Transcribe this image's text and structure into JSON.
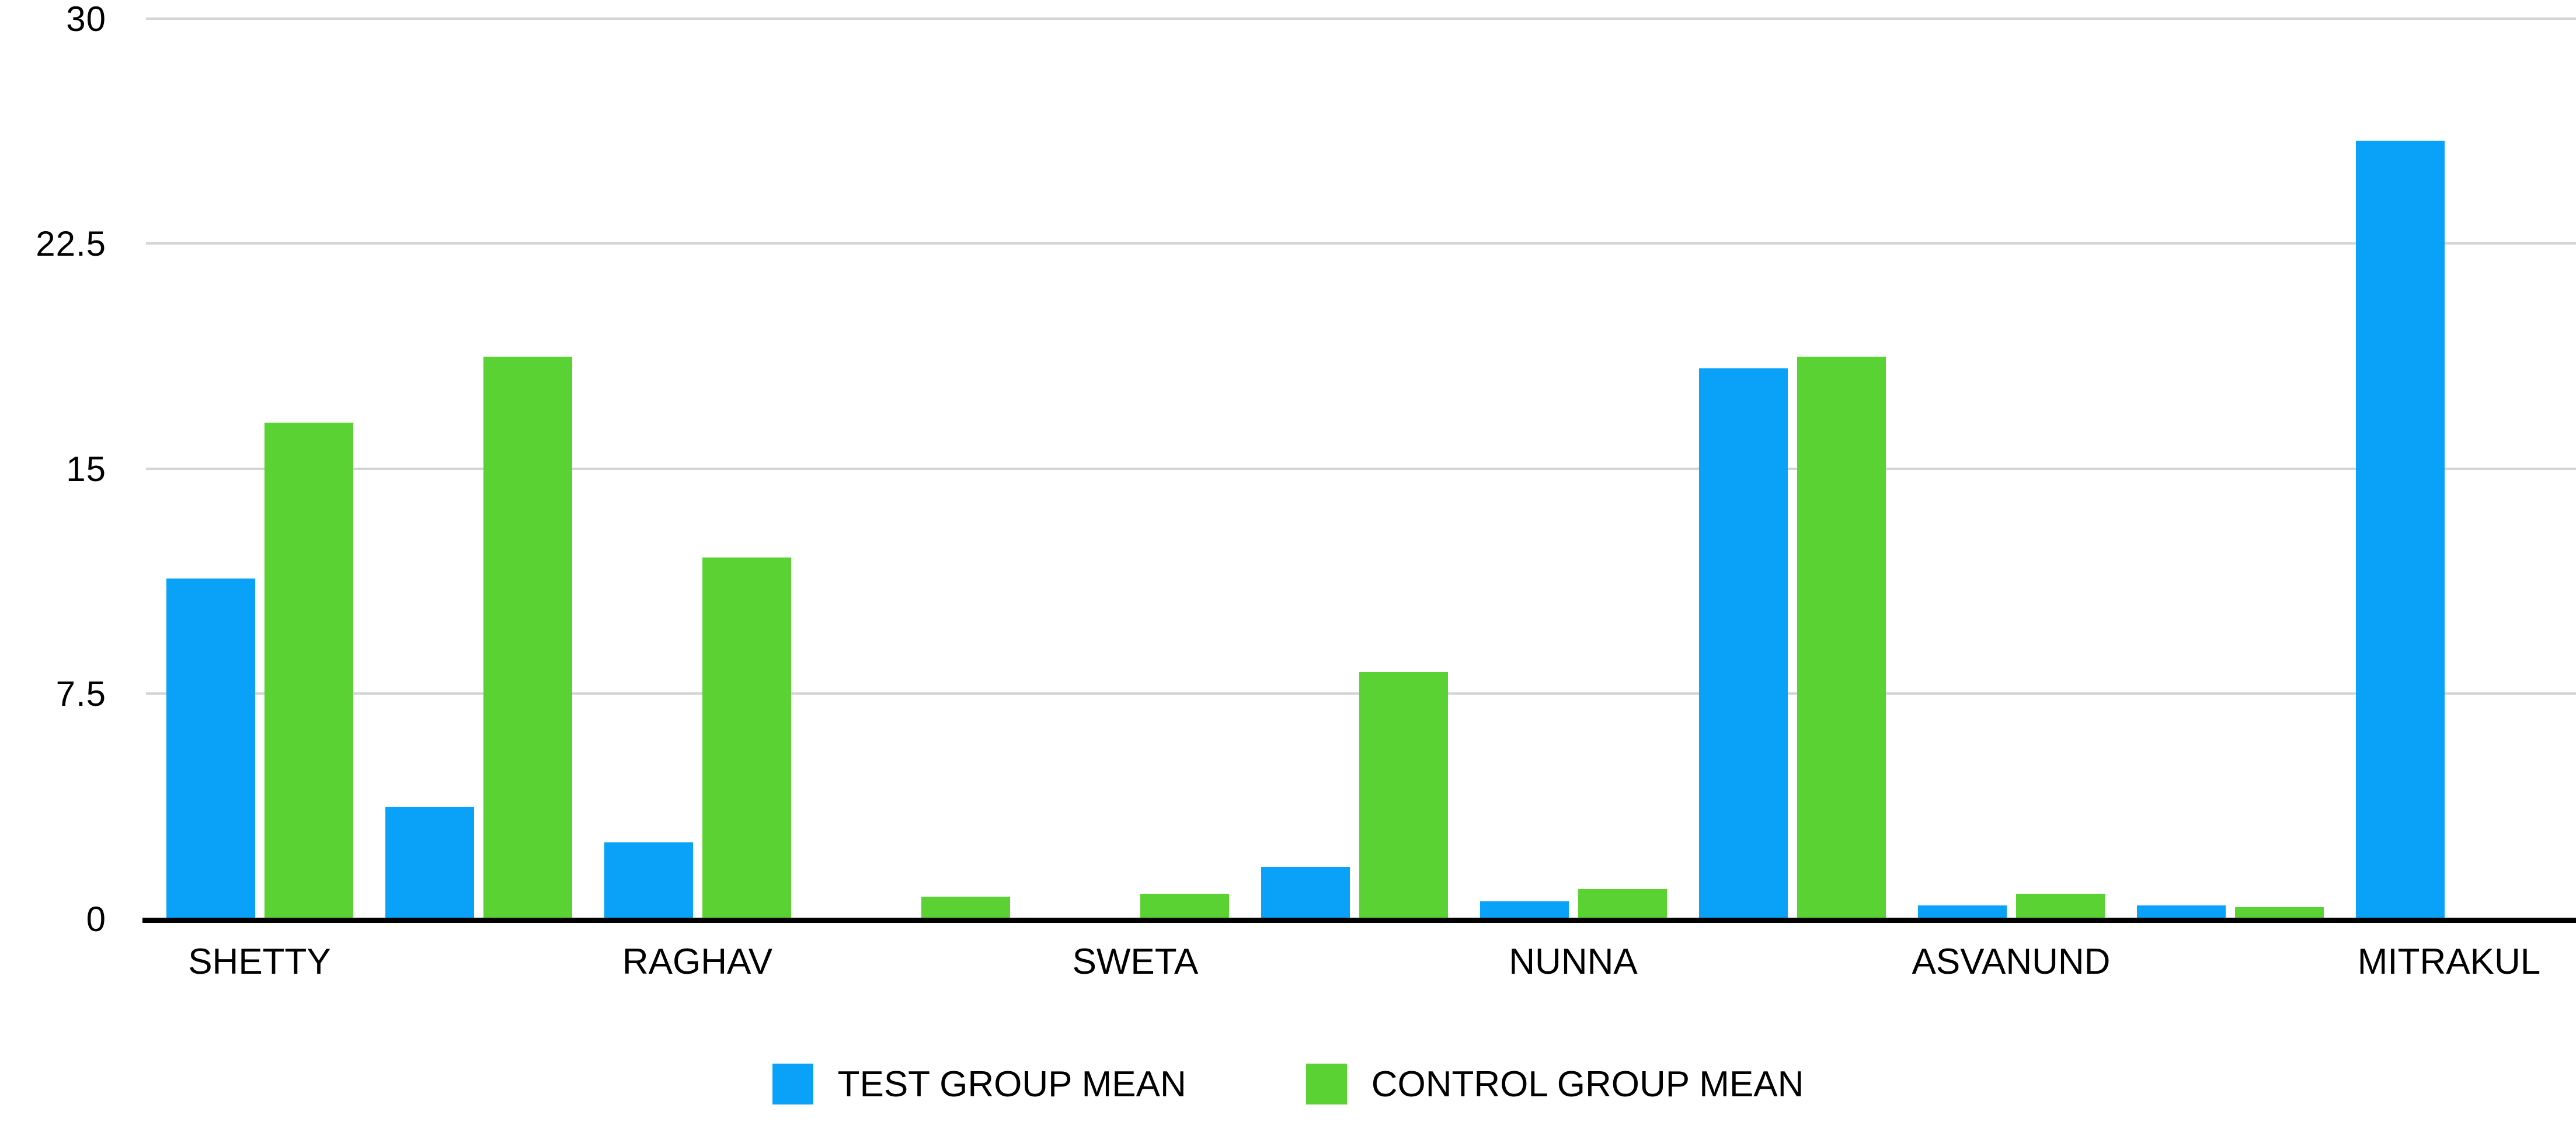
{
  "chart_data": {
    "type": "bar",
    "title": "",
    "categories": [
      "SHETTY",
      "",
      "RAGHAV",
      "",
      "SWETA",
      "",
      "NUNNA",
      "",
      "ASVANUND",
      "",
      "MITRAKUL"
    ],
    "series": [
      {
        "name": "TEST GROUP MEAN",
        "color": "#0aa2f8",
        "values": [
          11.3,
          3.7,
          2.5,
          0,
          0,
          1.7,
          0.55,
          18.3,
          0.4,
          0.4,
          25.9
        ]
      },
      {
        "name": "CONTROL GROUP MEAN",
        "color": "#5bd233",
        "values": [
          16.5,
          18.7,
          12,
          0.7,
          0.8,
          8.2,
          0.95,
          18.7,
          0.8,
          0.35,
          0
        ]
      }
    ],
    "xlabel": "",
    "ylabel": "",
    "ylim": [
      0,
      30
    ],
    "yticks": [
      30,
      22.5,
      15,
      7.5,
      0
    ],
    "ytick_labels": [
      "30",
      "22.5",
      "15",
      "7.5",
      "0"
    ],
    "grid": true,
    "legend_position": "bottom",
    "colors": {
      "test": "#0aa2f8",
      "control": "#5bd233",
      "gridline": "#d4d4d4",
      "axis_line": "#000000",
      "text": "#000000"
    }
  }
}
